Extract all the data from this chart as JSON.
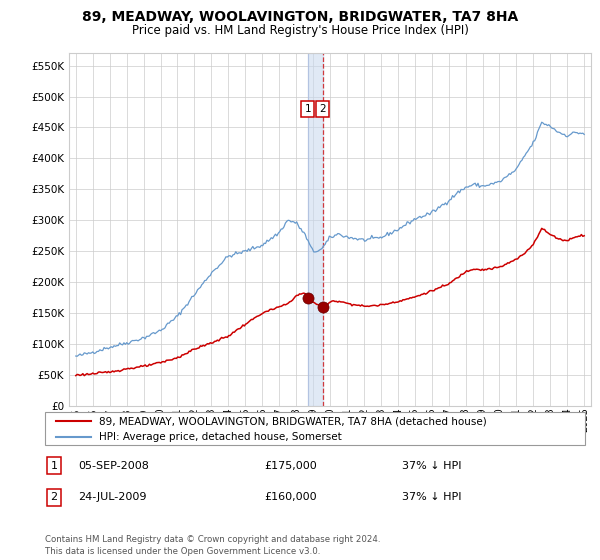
{
  "title": "89, MEADWAY, WOOLAVINGTON, BRIDGWATER, TA7 8HA",
  "subtitle": "Price paid vs. HM Land Registry's House Price Index (HPI)",
  "ylim": [
    0,
    570000
  ],
  "yticks": [
    0,
    50000,
    100000,
    150000,
    200000,
    250000,
    300000,
    350000,
    400000,
    450000,
    500000,
    550000
  ],
  "xlim_start": 1994.6,
  "xlim_end": 2025.4,
  "hpi_color": "#6699cc",
  "price_color": "#cc0000",
  "vline1_x": 2008.68,
  "vline2_x": 2009.56,
  "point1_x": 2008.68,
  "point1_y": 175000,
  "point2_x": 2009.56,
  "point2_y": 160000,
  "legend_line1": "89, MEADWAY, WOOLAVINGTON, BRIDGWATER, TA7 8HA (detached house)",
  "legend_line2": "HPI: Average price, detached house, Somerset",
  "table_rows": [
    {
      "num": "1",
      "date": "05-SEP-2008",
      "price": "£175,000",
      "hpi": "37% ↓ HPI"
    },
    {
      "num": "2",
      "date": "24-JUL-2009",
      "price": "£160,000",
      "hpi": "37% ↓ HPI"
    }
  ],
  "footnote": "Contains HM Land Registry data © Crown copyright and database right 2024.\nThis data is licensed under the Open Government Licence v3.0.",
  "background_color": "#ffffff",
  "grid_color": "#cccccc",
  "hpi_waypoints": [
    [
      1995.0,
      80000
    ],
    [
      1996.0,
      87000
    ],
    [
      1997.0,
      95000
    ],
    [
      1998.0,
      102000
    ],
    [
      1999.0,
      110000
    ],
    [
      2000.0,
      122000
    ],
    [
      2001.0,
      145000
    ],
    [
      2002.0,
      180000
    ],
    [
      2003.0,
      215000
    ],
    [
      2004.0,
      242000
    ],
    [
      2005.0,
      250000
    ],
    [
      2006.0,
      260000
    ],
    [
      2007.0,
      280000
    ],
    [
      2007.5,
      300000
    ],
    [
      2008.0,
      296000
    ],
    [
      2008.5,
      278000
    ],
    [
      2009.0,
      249000
    ],
    [
      2009.5,
      253000
    ],
    [
      2010.0,
      272000
    ],
    [
      2010.5,
      278000
    ],
    [
      2011.0,
      273000
    ],
    [
      2012.0,
      268000
    ],
    [
      2013.0,
      272000
    ],
    [
      2014.0,
      285000
    ],
    [
      2015.0,
      302000
    ],
    [
      2016.0,
      312000
    ],
    [
      2017.0,
      332000
    ],
    [
      2017.5,
      344000
    ],
    [
      2018.0,
      353000
    ],
    [
      2018.5,
      358000
    ],
    [
      2019.0,
      355000
    ],
    [
      2020.0,
      362000
    ],
    [
      2021.0,
      382000
    ],
    [
      2021.5,
      405000
    ],
    [
      2022.0,
      425000
    ],
    [
      2022.5,
      458000
    ],
    [
      2023.0,
      452000
    ],
    [
      2023.5,
      442000
    ],
    [
      2024.0,
      437000
    ],
    [
      2024.5,
      442000
    ],
    [
      2025.0,
      440000
    ]
  ],
  "price_waypoints": [
    [
      1995.0,
      50000
    ],
    [
      1996.0,
      52000
    ],
    [
      1997.0,
      55000
    ],
    [
      1998.0,
      60000
    ],
    [
      1999.0,
      64000
    ],
    [
      2000.0,
      70000
    ],
    [
      2001.0,
      78000
    ],
    [
      2001.5,
      85000
    ],
    [
      2002.0,
      92000
    ],
    [
      2003.0,
      102000
    ],
    [
      2004.0,
      113000
    ],
    [
      2005.0,
      132000
    ],
    [
      2006.0,
      150000
    ],
    [
      2007.0,
      160000
    ],
    [
      2007.5,
      165000
    ],
    [
      2008.0,
      178000
    ],
    [
      2008.5,
      183000
    ],
    [
      2008.68,
      175000
    ],
    [
      2009.0,
      168000
    ],
    [
      2009.56,
      160000
    ],
    [
      2009.8,
      163000
    ],
    [
      2010.0,
      168000
    ],
    [
      2010.5,
      170000
    ],
    [
      2011.0,
      166000
    ],
    [
      2012.0,
      161000
    ],
    [
      2013.0,
      163000
    ],
    [
      2014.0,
      169000
    ],
    [
      2015.0,
      176000
    ],
    [
      2016.0,
      186000
    ],
    [
      2017.0,
      197000
    ],
    [
      2017.5,
      207000
    ],
    [
      2018.0,
      217000
    ],
    [
      2018.5,
      222000
    ],
    [
      2019.0,
      220000
    ],
    [
      2020.0,
      224000
    ],
    [
      2021.0,
      237000
    ],
    [
      2021.5,
      247000
    ],
    [
      2022.0,
      262000
    ],
    [
      2022.5,
      287000
    ],
    [
      2023.0,
      277000
    ],
    [
      2023.5,
      270000
    ],
    [
      2024.0,
      267000
    ],
    [
      2024.5,
      274000
    ],
    [
      2025.0,
      276000
    ]
  ]
}
